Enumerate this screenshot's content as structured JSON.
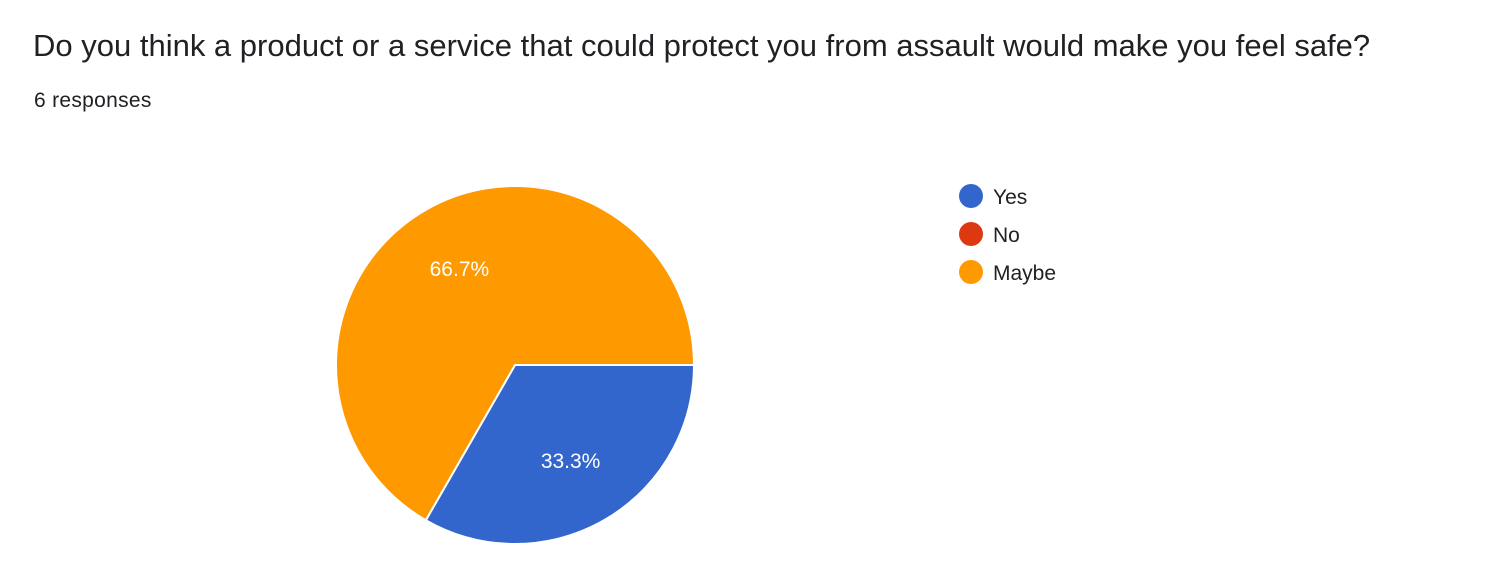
{
  "question": {
    "title": "Do you think a product or a service that could protect you from assault would make you feel safe?",
    "responses_label": "6 responses"
  },
  "chart_data": {
    "type": "pie",
    "categories": [
      "Yes",
      "No",
      "Maybe"
    ],
    "values": [
      33.3,
      0,
      66.7
    ],
    "data_labels": [
      "33.3%",
      "",
      "66.7%"
    ],
    "colors": [
      "#3366cc",
      "#dc3912",
      "#ff9900"
    ],
    "legend": {
      "placement": "right",
      "entries": [
        "Yes",
        "No",
        "Maybe"
      ]
    }
  }
}
